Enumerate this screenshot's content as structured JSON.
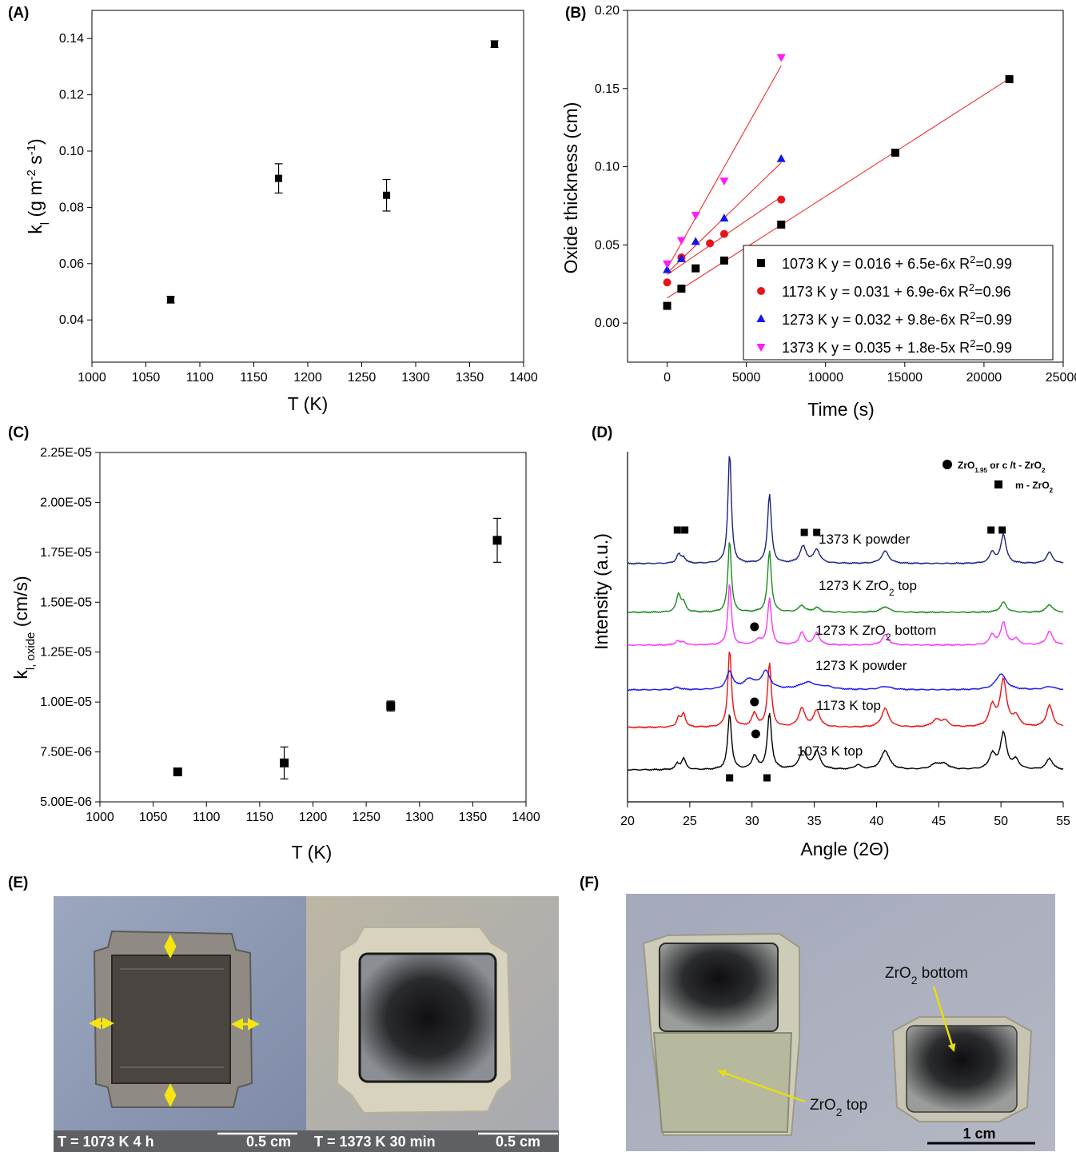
{
  "panel_labels": [
    "(A)",
    "(B)",
    "(C)",
    "(D)",
    "(E)",
    "(F)"
  ],
  "chart_data": [
    {
      "panel": "(A)",
      "type": "scatter",
      "xlabel": "T (K)",
      "ylabel": "k_l (g m^-2 s^-1)",
      "xlim": [
        1000,
        1400
      ],
      "ylim": [
        0.025,
        0.15
      ],
      "xticks": [
        1000,
        1050,
        1100,
        1150,
        1200,
        1250,
        1300,
        1350,
        1400
      ],
      "yticks": [
        0.04,
        0.06,
        0.08,
        0.1,
        0.12,
        0.14
      ],
      "ytick_labels": [
        "0.04",
        "0.06",
        "0.08",
        "0.10",
        "0.12",
        "0.14"
      ],
      "points": [
        {
          "x": 1073,
          "y": 0.0472,
          "err": 0.0012
        },
        {
          "x": 1173,
          "y": 0.0903,
          "err": 0.0052
        },
        {
          "x": 1273,
          "y": 0.0843,
          "err": 0.0056
        },
        {
          "x": 1373,
          "y": 0.138,
          "err": 0.0012
        }
      ]
    },
    {
      "panel": "(B)",
      "type": "scatter",
      "xlabel": "Time (s)",
      "ylabel": "Oxide thickness (cm)",
      "xlim": [
        -2500,
        25000
      ],
      "ylim": [
        -0.025,
        0.2
      ],
      "xticks": [
        0,
        5000,
        10000,
        15000,
        20000,
        25000
      ],
      "yticks": [
        0.0,
        0.05,
        0.1,
        0.15,
        0.2
      ],
      "ytick_labels": [
        "0.00",
        "0.05",
        "0.10",
        "0.15",
        "0.20"
      ],
      "legend_position": "bottom-right",
      "series": [
        {
          "name": "1073 K",
          "fit": "y = 0.016 + 6.5e-6x",
          "r2": "0.99",
          "color": "#000000",
          "marker": "square",
          "x": [
            0,
            900,
            1800,
            3600,
            7200,
            14400,
            21600
          ],
          "y": [
            0.011,
            0.022,
            0.035,
            0.04,
            0.063,
            0.109,
            0.156
          ],
          "fit_line": [
            [
              0,
              0.016
            ],
            [
              21600,
              0.1564
            ]
          ]
        },
        {
          "name": "1173 K",
          "fit": "y = 0.031 + 6.9e-6x",
          "r2": "0.96",
          "color": "#e8141b",
          "marker": "circle",
          "x": [
            0,
            900,
            2700,
            3600,
            7200
          ],
          "y": [
            0.026,
            0.042,
            0.051,
            0.057,
            0.079
          ],
          "fit_line": [
            [
              0,
              0.031
            ],
            [
              7200,
              0.0807
            ]
          ]
        },
        {
          "name": "1273 K",
          "fit": "y = 0.032 + 9.8e-6x",
          "r2": "0.99",
          "color": "#1515e6",
          "marker": "triangle-up",
          "x": [
            0,
            900,
            1800,
            3600,
            7200
          ],
          "y": [
            0.034,
            0.041,
            0.052,
            0.067,
            0.105
          ],
          "fit_line": [
            [
              0,
              0.032
            ],
            [
              7200,
              0.1026
            ]
          ]
        },
        {
          "name": "1373 K",
          "fit": "y = 0.035 + 1.8e-5x",
          "r2": "0.99",
          "color": "#ff1aff",
          "marker": "triangle-down",
          "x": [
            0,
            900,
            1800,
            3600,
            7200
          ],
          "y": [
            0.038,
            0.053,
            0.069,
            0.091,
            0.17
          ],
          "fit_line": [
            [
              0,
              0.035
            ],
            [
              7200,
              0.1646
            ]
          ]
        }
      ]
    },
    {
      "panel": "(C)",
      "type": "scatter",
      "xlabel": "T (K)",
      "ylabel": "k_l, oxide (cm/s)",
      "xlim": [
        1000,
        1400
      ],
      "ylim": [
        5e-06,
        2.25e-05
      ],
      "xticks": [
        1000,
        1050,
        1100,
        1150,
        1200,
        1250,
        1300,
        1350,
        1400
      ],
      "yticks": [
        5e-06,
        7.5e-06,
        1e-05,
        1.25e-05,
        1.5e-05,
        1.75e-05,
        2e-05,
        2.25e-05
      ],
      "ytick_labels": [
        "5.00E-06",
        "7.50E-06",
        "1.00E-05",
        "1.25E-05",
        "1.50E-05",
        "1.75E-05",
        "2.00E-05",
        "2.25E-05"
      ],
      "points": [
        {
          "x": 1073,
          "y": 6.5e-06,
          "err": 1.5e-07
        },
        {
          "x": 1173,
          "y": 6.95e-06,
          "err": 8e-07
        },
        {
          "x": 1273,
          "y": 9.8e-06,
          "err": 2.5e-07
        },
        {
          "x": 1373,
          "y": 1.81e-05,
          "err": 1.1e-06
        }
      ]
    },
    {
      "panel": "(D)",
      "type": "line",
      "xlabel": "Angle (2Θ)",
      "ylabel": "Intensity (a.u.)",
      "xlim": [
        20,
        55
      ],
      "xticks": [
        20,
        25,
        30,
        35,
        40,
        45,
        50,
        55
      ],
      "legend": [
        {
          "marker": "circle",
          "label": "ZrO1.95 or c /t - ZrO2"
        },
        {
          "marker": "square",
          "label": "m - ZrO2"
        }
      ],
      "series": [
        {
          "name": "1373 K powder",
          "color": "#1a237e",
          "label_rich": [
            "1373 K powder"
          ]
        },
        {
          "name": "1273 K ZrO2 top",
          "color": "#1b8a1b",
          "label_rich": [
            "1273 K Z",
            "r",
            "O",
            "2",
            " top"
          ]
        },
        {
          "name": "1273 K ZrO2 bottom",
          "color": "#ff33ff",
          "label_rich": [
            "1273 K ZrO",
            "2",
            " bottom"
          ]
        },
        {
          "name": "1273 K powder",
          "color": "#1a1aee",
          "label_rich": [
            "1273 K powder"
          ]
        },
        {
          "name": "1173 K top",
          "color": "#ee1111",
          "label_rich": [
            "1173 K top"
          ]
        },
        {
          "name": "1073 K top",
          "color": "#000000",
          "label_rich": [
            "1073 K top"
          ]
        }
      ],
      "peak_markers": {
        "square_top": [
          24.0,
          24.6,
          34.2,
          35.2,
          49.2,
          50.1
        ],
        "square_bottom": [
          28.2,
          31.2
        ],
        "circle": [
          30.2,
          30.2,
          30.3
        ]
      }
    }
  ],
  "photos": {
    "e_left_caption": "T = 1073 K 4 h",
    "e_left_scale": "0.5 cm",
    "e_right_caption": "T = 1373 K 30 min",
    "e_right_scale": "0.5 cm",
    "f_label_bottom": "ZrO2 bottom",
    "f_label_top": "ZrO2 top",
    "f_scale": "1 cm"
  }
}
